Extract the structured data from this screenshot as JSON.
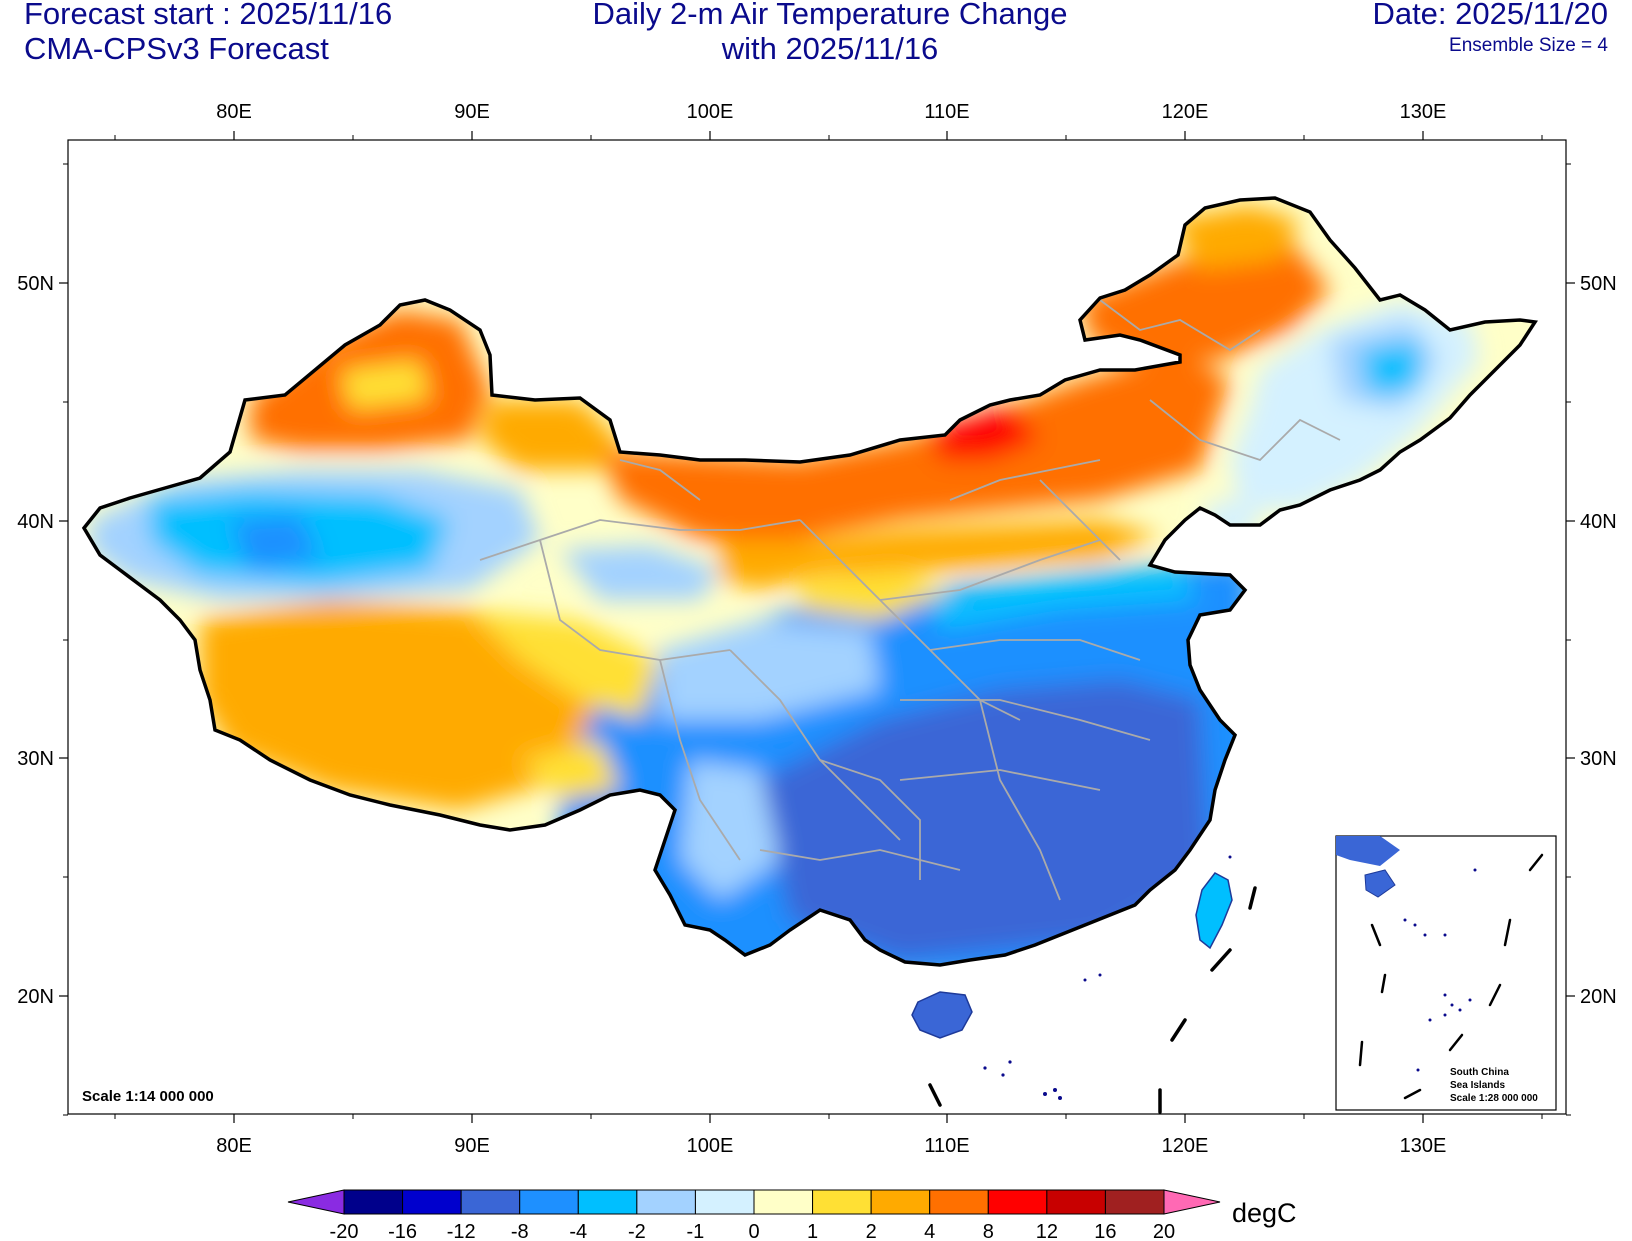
{
  "header": {
    "forecast_start": "Forecast start : 2025/11/16",
    "model": "CMA-CPSv3 Forecast",
    "title_line1": "Daily 2-m Air Temperature Change",
    "title_line2": "with 2025/11/16",
    "date": "Date: 2025/11/20",
    "ensemble": "Ensemble Size = 4"
  },
  "map": {
    "lon_labels": [
      "80E",
      "90E",
      "100E",
      "110E",
      "120E",
      "130E"
    ],
    "lat_labels": [
      "50N",
      "40N",
      "30N",
      "20N"
    ],
    "scale_label": "Scale 1:14 000 000",
    "inset": {
      "line1": "South China",
      "line2": "Sea Islands",
      "line3": "Scale 1:28 000 000"
    }
  },
  "colorbar": {
    "unit": "degC",
    "labels": [
      "-20",
      "-16",
      "-12",
      "-8",
      "-4",
      "-2",
      "-1",
      "0",
      "1",
      "2",
      "4",
      "8",
      "12",
      "16",
      "20"
    ],
    "colors": [
      "#8a2be2",
      "#00008b",
      "#0000cd",
      "#3a66d6",
      "#1e90ff",
      "#00bfff",
      "#a3d2ff",
      "#d4f1ff",
      "#ffffc8",
      "#ffe034",
      "#ffaa00",
      "#ff7000",
      "#ff0000",
      "#c80000",
      "#a02020",
      "#ff69b4"
    ]
  }
}
